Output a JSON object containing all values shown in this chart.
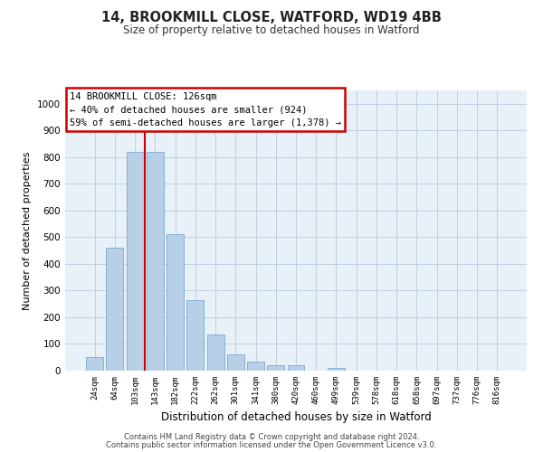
{
  "title1": "14, BROOKMILL CLOSE, WATFORD, WD19 4BB",
  "title2": "Size of property relative to detached houses in Watford",
  "xlabel": "Distribution of detached houses by size in Watford",
  "ylabel": "Number of detached properties",
  "annotation_line1": "14 BROOKMILL CLOSE: 126sqm",
  "annotation_line2": "← 40% of detached houses are smaller (924)",
  "annotation_line3": "59% of semi-detached houses are larger (1,378) →",
  "footer1": "Contains HM Land Registry data © Crown copyright and database right 2024.",
  "footer2": "Contains public sector information licensed under the Open Government Licence v3.0.",
  "bar_color": "#b8cfe8",
  "bar_edge_color": "#6a9fcb",
  "grid_color": "#c0d0e0",
  "bg_color": "#e8f0f8",
  "annotation_box_color": "#cc0000",
  "vline_color": "#cc0000",
  "categories": [
    "24sqm",
    "64sqm",
    "103sqm",
    "143sqm",
    "182sqm",
    "222sqm",
    "262sqm",
    "301sqm",
    "341sqm",
    "380sqm",
    "420sqm",
    "460sqm",
    "499sqm",
    "539sqm",
    "578sqm",
    "618sqm",
    "658sqm",
    "697sqm",
    "737sqm",
    "776sqm",
    "816sqm"
  ],
  "values": [
    50,
    460,
    820,
    820,
    510,
    265,
    135,
    60,
    35,
    20,
    20,
    0,
    10,
    0,
    0,
    0,
    0,
    0,
    0,
    0,
    0
  ],
  "vline_x_idx": 2.5,
  "ylim": [
    0,
    1050
  ],
  "yticks": [
    0,
    100,
    200,
    300,
    400,
    500,
    600,
    700,
    800,
    900,
    1000
  ]
}
